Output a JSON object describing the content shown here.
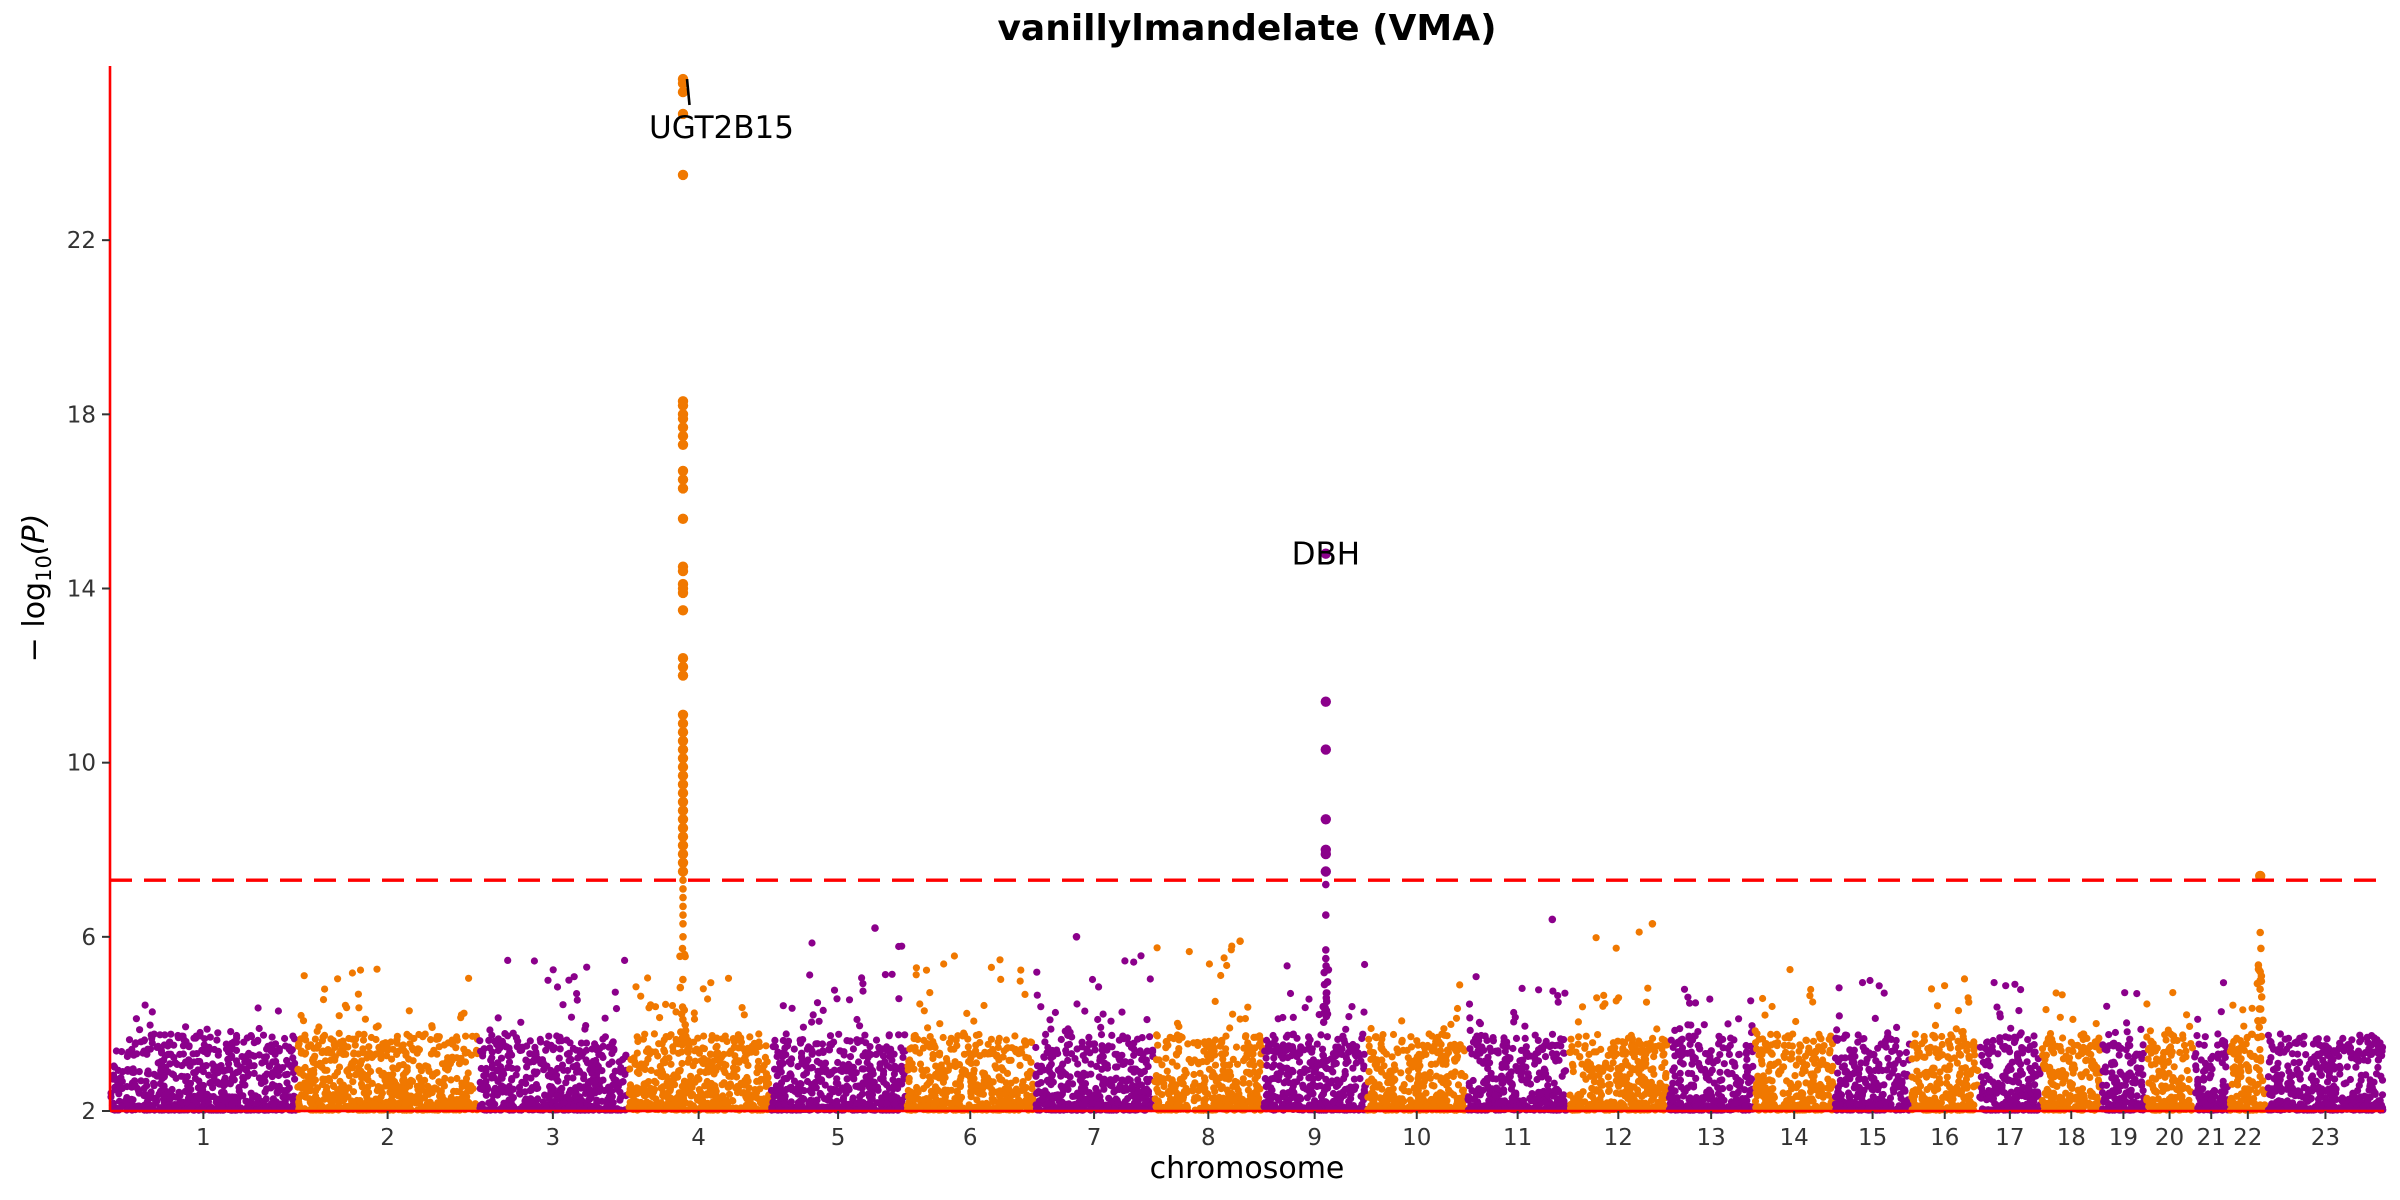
{
  "chart_data": {
    "type": "scatter",
    "title": "vanillylmandelate (VMA)",
    "xlabel": "chromosome",
    "ylabel_parts": {
      "prefix": "− log",
      "sub": "10",
      "suffix": "(P)"
    },
    "ylim": [
      2,
      26
    ],
    "y_ticks": [
      2,
      6,
      10,
      14,
      18,
      22
    ],
    "significance_threshold": 7.3,
    "colors": {
      "odd": "#8b008b",
      "even": "#f07800",
      "axis": "#ff0000",
      "threshold": "#ff0000"
    },
    "chromosomes": [
      {
        "label": "1",
        "start": 0,
        "end": 2489
      },
      {
        "label": "2",
        "start": 2489,
        "end": 4911
      },
      {
        "label": "3",
        "start": 4911,
        "end": 6894
      },
      {
        "label": "4",
        "start": 6894,
        "end": 8796
      },
      {
        "label": "5",
        "start": 8796,
        "end": 10611
      },
      {
        "label": "6",
        "start": 10611,
        "end": 12319
      },
      {
        "label": "7",
        "start": 12319,
        "end": 13912
      },
      {
        "label": "8",
        "start": 13912,
        "end": 15364
      },
      {
        "label": "9",
        "start": 15364,
        "end": 16747
      },
      {
        "label": "10",
        "start": 16747,
        "end": 18085
      },
      {
        "label": "11",
        "start": 18085,
        "end": 19436
      },
      {
        "label": "12",
        "start": 19436,
        "end": 20768
      },
      {
        "label": "13",
        "start": 20768,
        "end": 21911
      },
      {
        "label": "14",
        "start": 21911,
        "end": 22981
      },
      {
        "label": "15",
        "start": 22981,
        "end": 24001
      },
      {
        "label": "16",
        "start": 24001,
        "end": 24904
      },
      {
        "label": "17",
        "start": 24904,
        "end": 25737
      },
      {
        "label": "18",
        "start": 25737,
        "end": 26541
      },
      {
        "label": "19",
        "start": 26541,
        "end": 27127
      },
      {
        "label": "20",
        "start": 27127,
        "end": 27771
      },
      {
        "label": "21",
        "start": 27771,
        "end": 28238
      },
      {
        "label": "22",
        "start": 28238,
        "end": 28746
      },
      {
        "label": "23",
        "start": 28746,
        "end": 30307
      }
    ],
    "background_band": {
      "chromosome_peaks": [
        4.5,
        5.3,
        5.7,
        5.1,
        6.1,
        5.9,
        5.6,
        5.8,
        5.7,
        5.0,
        5.5,
        6.2,
        4.8,
        5.4,
        5.3,
        5.1,
        5.3,
        4.8,
        5.0,
        4.9,
        5.0,
        4.7,
        3.6
      ]
    },
    "peaks": [
      {
        "chromosome": "4",
        "x": 7637,
        "y_values": [
          25.7,
          25.6,
          25.4,
          24.9,
          23.5,
          18.3,
          18.2,
          18.0,
          17.9,
          17.7,
          17.5,
          17.3,
          16.7,
          16.5,
          16.3,
          15.6,
          14.5,
          14.4,
          14.1,
          14.0,
          13.9,
          13.5,
          12.4,
          12.2,
          12.0,
          11.1,
          10.9,
          10.7,
          10.5,
          10.3,
          10.1,
          9.9,
          9.7,
          9.5,
          9.3,
          9.1,
          8.9,
          8.7,
          8.5,
          8.3,
          8.1,
          7.9,
          7.7,
          7.5,
          7.3,
          7.1,
          6.9,
          6.7,
          6.5,
          6.3,
          6.0
        ]
      },
      {
        "chromosome": "9",
        "x": 16204,
        "y_values": [
          14.8,
          11.4,
          10.3,
          8.7,
          8.0,
          7.9,
          7.5,
          7.2,
          6.5,
          5.7,
          5.5
        ]
      },
      {
        "chromosome": "22",
        "x": 28657,
        "y_values": [
          7.4,
          6.1,
          5.2,
          5.0
        ]
      }
    ],
    "isolated_points": [
      {
        "x": 10195,
        "y": 6.2
      },
      {
        "x": 12881,
        "y": 6.0
      },
      {
        "x": 15062,
        "y": 5.9
      },
      {
        "x": 19222,
        "y": 6.4
      },
      {
        "x": 20557,
        "y": 6.3
      }
    ],
    "annotations": [
      {
        "label": "UGT2B15",
        "point_x": 7637,
        "point_y": 25.7,
        "label_x": 8150,
        "label_y": 24.6,
        "leader": true
      },
      {
        "label": "DBH",
        "point_x": 16204,
        "point_y": 14.8,
        "label_x": 16204,
        "label_y": 14.8,
        "leader": false
      }
    ]
  }
}
